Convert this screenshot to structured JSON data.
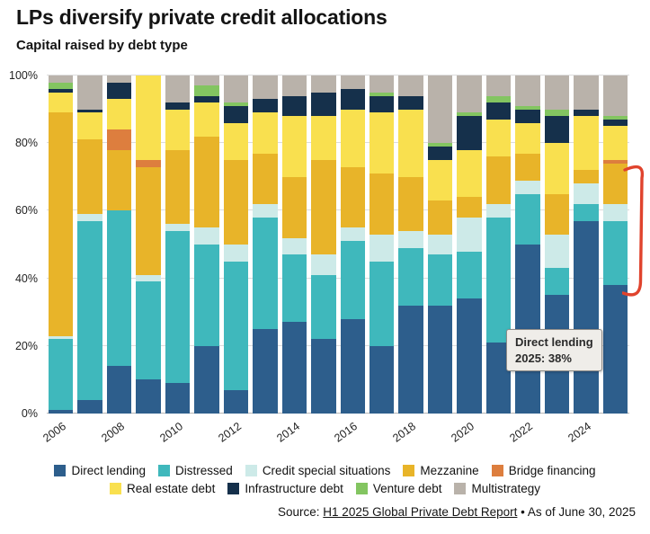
{
  "header": {
    "title": "LPs diversify private credit allocations",
    "subtitle": "Capital raised by debt type"
  },
  "chart_data": {
    "type": "bar",
    "stacked": true,
    "title": "LPs diversify private credit allocations",
    "subtitle": "Capital raised by debt type",
    "xlabel": "",
    "ylabel": "",
    "ylim": [
      0,
      100
    ],
    "y_ticks": [
      0,
      20,
      40,
      60,
      80,
      100
    ],
    "y_tick_suffix": "%",
    "grid": true,
    "legend_position": "bottom",
    "x": [
      2006,
      2007,
      2008,
      2009,
      2010,
      2011,
      2012,
      2013,
      2014,
      2015,
      2016,
      2017,
      2018,
      2019,
      2020,
      2021,
      2022,
      2023,
      2024,
      2025
    ],
    "x_tick_labels": [
      "2006",
      "2008",
      "2010",
      "2012",
      "2014",
      "2016",
      "2018",
      "2020",
      "2022",
      "2024"
    ],
    "series": [
      {
        "name": "Direct lending",
        "color": "#2d5e8c",
        "values": [
          1,
          4,
          14,
          10,
          9,
          20,
          7,
          25,
          27,
          22,
          28,
          20,
          32,
          32,
          34,
          21,
          50,
          35,
          57,
          38
        ]
      },
      {
        "name": "Distressed",
        "color": "#3fb8bc",
        "values": [
          21,
          53,
          46,
          29,
          45,
          30,
          38,
          33,
          20,
          19,
          23,
          25,
          17,
          15,
          14,
          37,
          15,
          8,
          5,
          19
        ]
      },
      {
        "name": "Credit special situations",
        "color": "#cdeae8",
        "values": [
          1,
          2,
          0,
          2,
          2,
          5,
          5,
          4,
          5,
          6,
          4,
          8,
          5,
          6,
          10,
          4,
          4,
          10,
          6,
          5
        ]
      },
      {
        "name": "Mezzanine",
        "color": "#e8b429",
        "values": [
          66,
          22,
          18,
          32,
          22,
          27,
          25,
          15,
          18,
          28,
          18,
          18,
          16,
          10,
          6,
          14,
          8,
          12,
          4,
          12
        ]
      },
      {
        "name": "Bridge financing",
        "color": "#dd7e3e",
        "values": [
          0,
          0,
          6,
          2,
          0,
          0,
          0,
          0,
          0,
          0,
          0,
          0,
          0,
          0,
          0,
          0,
          0,
          0,
          0,
          1
        ]
      },
      {
        "name": "Real estate debt",
        "color": "#f9e04f",
        "values": [
          6,
          8,
          9,
          25,
          12,
          10,
          11,
          12,
          18,
          13,
          17,
          18,
          20,
          12,
          14,
          11,
          9,
          15,
          16,
          10
        ]
      },
      {
        "name": "Infrastructure debt",
        "color": "#15304b",
        "values": [
          1,
          1,
          5,
          0,
          2,
          2,
          5,
          4,
          6,
          7,
          6,
          5,
          4,
          4,
          10,
          5,
          4,
          8,
          2,
          2
        ]
      },
      {
        "name": "Venture debt",
        "color": "#83c561",
        "values": [
          2,
          0,
          0,
          0,
          0,
          3,
          1,
          0,
          0,
          0,
          0,
          1,
          0,
          1,
          1,
          2,
          1,
          2,
          0,
          1
        ]
      },
      {
        "name": "Multistrategy",
        "color": "#b9b2aa",
        "values": [
          2,
          10,
          2,
          0,
          8,
          3,
          8,
          7,
          6,
          5,
          4,
          5,
          6,
          20,
          11,
          6,
          9,
          10,
          10,
          12
        ]
      }
    ],
    "annotations": [
      {
        "text": "Direct lending 2025: 38%",
        "target_year": 2025
      },
      {
        "type": "bracket",
        "color": "#e0432d",
        "y_range_pct": [
          37,
          73
        ]
      }
    ]
  },
  "annotation": {
    "line1": "Direct lending",
    "line2": "2025: 38%"
  },
  "bracket": {
    "color": "#e0432d"
  },
  "source": {
    "prefix": "Source: ",
    "link": "H1 2025 Global Private Debt Report",
    "suffix": " • As of June 30, 2025"
  }
}
